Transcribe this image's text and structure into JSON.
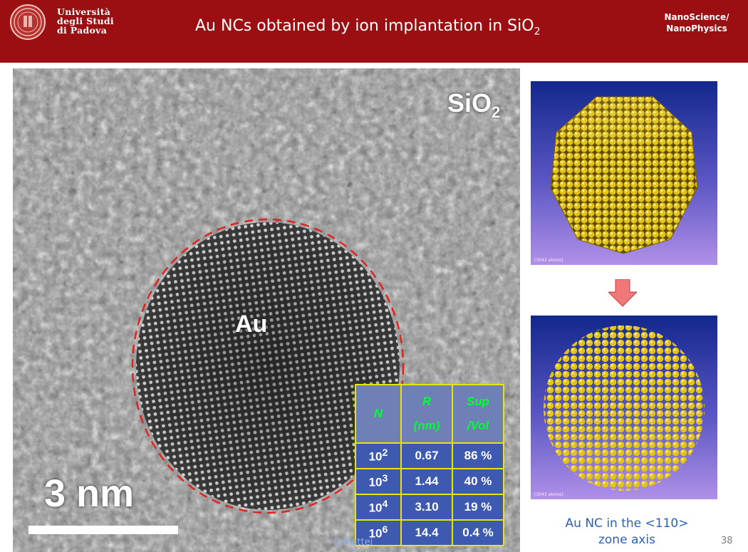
{
  "header": {
    "university_lines": [
      "Università",
      "degli Studi",
      "di Padova"
    ],
    "title_main": "Au NCs obtained by ion implantation in SiO",
    "title_sub": "2",
    "course_line1": "NanoScience/",
    "course_line2": "NanoPhysics"
  },
  "image": {
    "sio2_main": "SiO",
    "sio2_sub": "2",
    "au_label": "Au",
    "scale_label": "3 nm"
  },
  "table": {
    "headers": [
      {
        "line1": "N",
        "line2": ""
      },
      {
        "line1": "R",
        "line2": "(nm)"
      },
      {
        "line1": "Sup",
        "line2": "/Vol"
      }
    ],
    "rows": [
      {
        "n_base": "10",
        "n_exp": "2",
        "r": "0.67",
        "sv": "86 %"
      },
      {
        "n_base": "10",
        "n_exp": "3",
        "r": "1.44",
        "sv": "40 %"
      },
      {
        "n_base": "10",
        "n_exp": "4",
        "r": "3.10",
        "sv": "19 %"
      },
      {
        "n_base": "10",
        "n_exp": "6",
        "r": "14.4",
        "sv": "0.4 %"
      }
    ]
  },
  "author": "G.Mattei",
  "panels": {
    "top_atoms": "[3043 atoms]",
    "bottom_atoms": "[3043 atoms]"
  },
  "caption": {
    "line1": "Au NC in the <110>",
    "line2": "zone axis"
  },
  "slide_number": "38",
  "colors": {
    "header_bg": "#9b0f12",
    "table_header_text": "#00ff33",
    "table_border": "#e6e600",
    "caption": "#2c5fb7",
    "arrow": "#f07878",
    "gold": "#e3c21a"
  }
}
